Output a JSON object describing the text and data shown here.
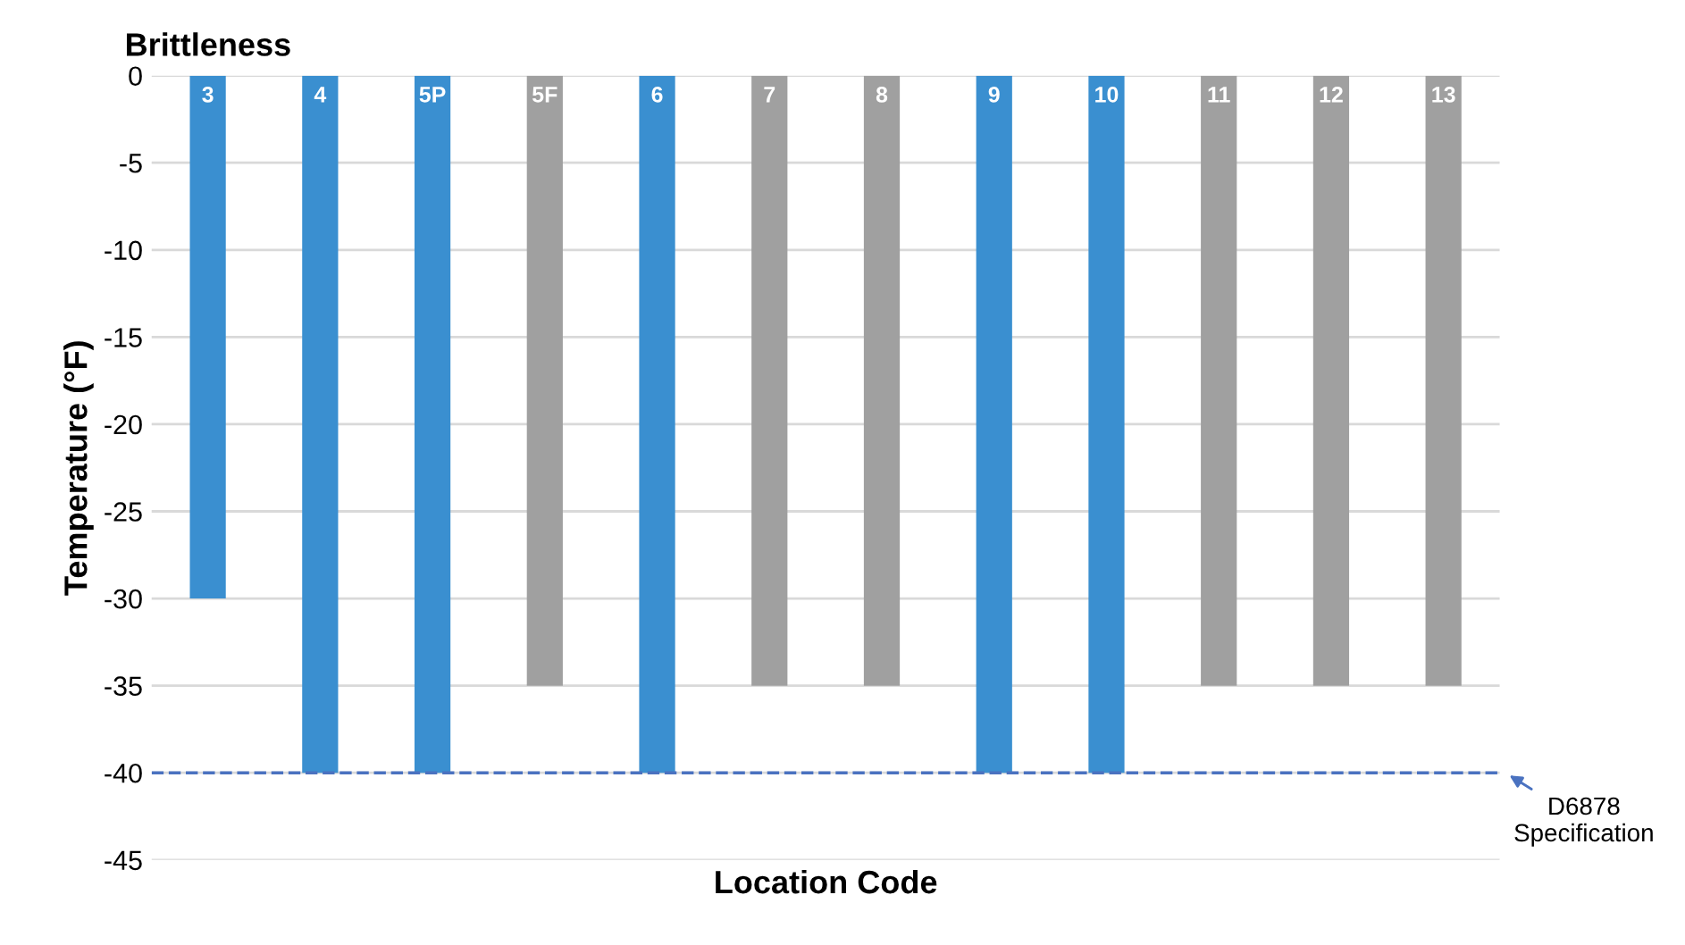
{
  "chart_data": {
    "type": "bar",
    "title": "Brittleness",
    "xlabel": "Location Code",
    "ylabel": "Temperature (°F)",
    "categories": [
      "3",
      "4",
      "5P",
      "5F",
      "6",
      "7",
      "8",
      "9",
      "10",
      "11",
      "12",
      "13"
    ],
    "values": [
      -30,
      -40,
      -40,
      -35,
      -40,
      -35,
      -35,
      -40,
      -40,
      -35,
      -35,
      -35
    ],
    "colors": [
      "#3a8fd0",
      "#3a8fd0",
      "#3a8fd0",
      "#a0a0a0",
      "#3a8fd0",
      "#a0a0a0",
      "#a0a0a0",
      "#3a8fd0",
      "#3a8fd0",
      "#a0a0a0",
      "#a0a0a0",
      "#a0a0a0"
    ],
    "ylim": [
      -45,
      0
    ],
    "yticks": [
      0,
      -5,
      -10,
      -15,
      -20,
      -25,
      -30,
      -35,
      -40,
      -45
    ],
    "grid": "y",
    "tick_labels": "y",
    "ref_lines": [
      {
        "axis": "y",
        "value": -40,
        "label": "D6878\nSpecification",
        "color": "#4a72c0",
        "line_style": "dashed"
      }
    ]
  }
}
